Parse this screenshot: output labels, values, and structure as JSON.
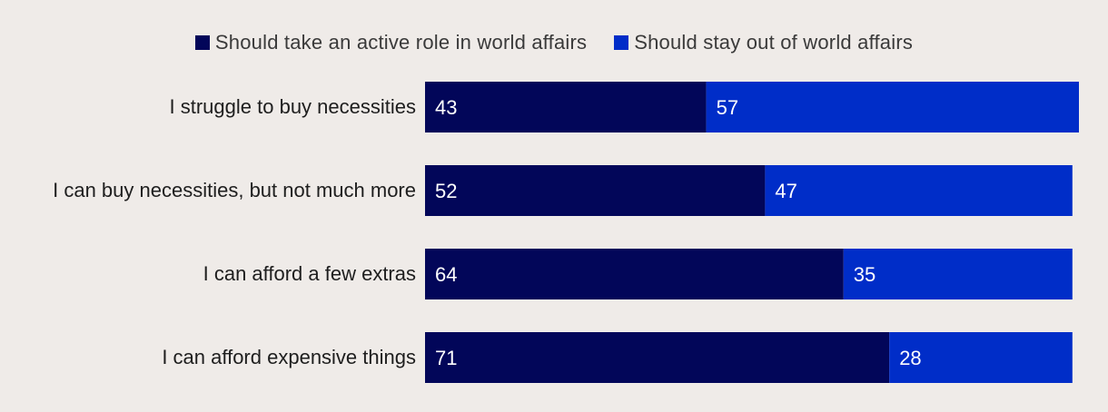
{
  "chart_data": {
    "type": "bar",
    "orientation": "horizontal",
    "stacked": true,
    "title": "",
    "xlabel": "",
    "ylabel": "",
    "xlim": [
      0,
      100
    ],
    "legend_position": "top-center",
    "categories": [
      "I struggle to buy necessities",
      "I can buy necessities, but not much more",
      "I can afford a few extras",
      "I can afford expensive things"
    ],
    "series": [
      {
        "name": "Should take an active role in world affairs",
        "color": "#020659",
        "values": [
          43,
          52,
          64,
          71
        ]
      },
      {
        "name": "Should stay out of world affairs",
        "color": "#002dc8",
        "values": [
          57,
          47,
          35,
          28
        ]
      }
    ],
    "label_color": "#ffffff",
    "category_label_color": "#1e1e1e"
  }
}
